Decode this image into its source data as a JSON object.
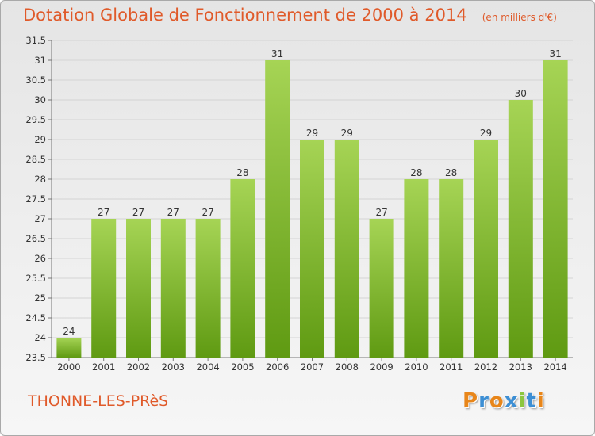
{
  "chart_data": {
    "type": "bar",
    "title": "Dotation Globale de Fonctionnement de 2000 à 2014",
    "subtitle": "(en milliers d'€)",
    "xlabel": "",
    "ylabel": "",
    "categories": [
      "2000",
      "2001",
      "2002",
      "2003",
      "2004",
      "2005",
      "2006",
      "2007",
      "2008",
      "2009",
      "2010",
      "2011",
      "2012",
      "2013",
      "2014"
    ],
    "values": [
      24,
      27,
      27,
      27,
      27,
      28,
      31,
      29,
      29,
      27,
      28,
      28,
      29,
      30,
      31
    ],
    "ylim": [
      23.5,
      31.5
    ],
    "yticks": [
      "23.5",
      "24",
      "24.5",
      "25",
      "25.5",
      "26",
      "26.5",
      "27",
      "27.5",
      "28",
      "28.5",
      "29",
      "29.5",
      "30",
      "30.5",
      "31",
      "31.5"
    ],
    "grid": true,
    "legend": "none",
    "colors": {
      "bar_light": "#a6d455",
      "bar_dark": "#5f9a12",
      "title": "#e05a2a"
    }
  },
  "commune": "THONNE-LES-PRèS",
  "logo": {
    "text": "Proxiti",
    "letters": [
      "P",
      "r",
      "o",
      "x",
      "i",
      "t",
      "i"
    ],
    "colors": [
      "#e8861a",
      "#3d8fd4",
      "#e8861a",
      "#3d8fd4",
      "#8cc63f",
      "#3d8fd4",
      "#e8861a"
    ]
  }
}
